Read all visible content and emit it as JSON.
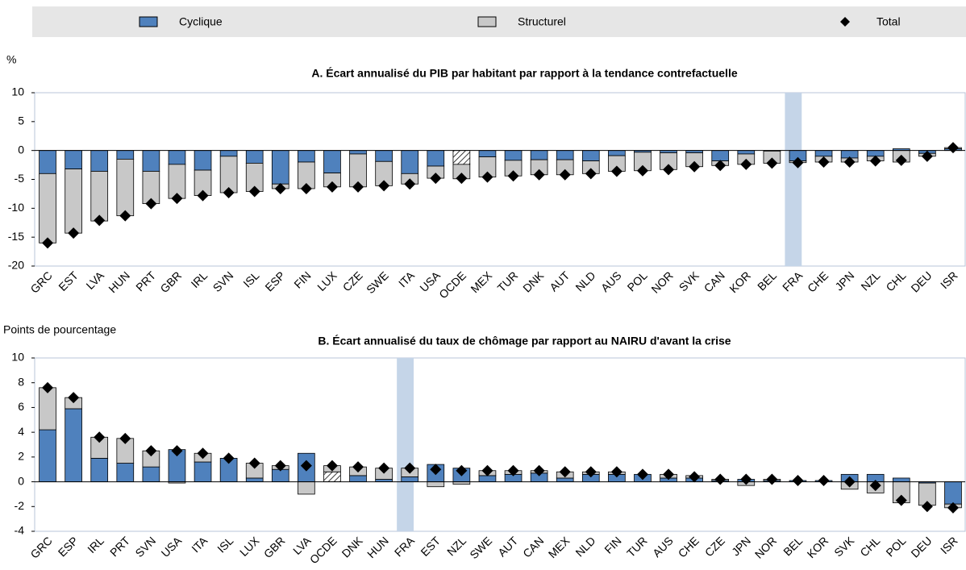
{
  "chart_data": [
    {
      "type": "stacked_bar",
      "title": "A. Écart annualisé du PIB par habitant par rapport à la tendance contrefactuelle",
      "y_label": "%",
      "categories": [
        "GRC",
        "EST",
        "LVA",
        "HUN",
        "PRT",
        "GBR",
        "IRL",
        "SVN",
        "ISL",
        "ESP",
        "FIN",
        "LUX",
        "CZE",
        "SWE",
        "ITA",
        "USA",
        "OCDE",
        "MEX",
        "TUR",
        "DNK",
        "AUT",
        "NLD",
        "AUS",
        "POL",
        "NOR",
        "SVK",
        "CAN",
        "KOR",
        "BEL",
        "FRA",
        "CHE",
        "JPN",
        "NZL",
        "CHL",
        "DEU",
        "ISR"
      ],
      "series": [
        {
          "name": "Cyclique",
          "color": "#4f81bd",
          "values": [
            -4.0,
            -3.2,
            -3.6,
            -1.5,
            -3.6,
            -2.4,
            -3.4,
            -1.0,
            -2.2,
            -5.8,
            -2.0,
            -3.9,
            -0.6,
            -1.9,
            -4.0,
            -2.7,
            -2.4,
            -1.1,
            -1.7,
            -1.6,
            -1.6,
            -1.8,
            -0.9,
            -0.3,
            -0.4,
            -0.4,
            -1.8,
            -0.6,
            -0.1,
            -1.8,
            -1.0,
            -1.3,
            -1.0,
            0.3,
            -0.5,
            0.3
          ]
        },
        {
          "name": "Structurel",
          "color": "#c8c8c8",
          "values": [
            -12.0,
            -11.1,
            -8.6,
            -9.8,
            -5.6,
            -5.9,
            -4.4,
            -6.3,
            -4.9,
            -0.8,
            -4.6,
            -2.4,
            -5.7,
            -4.2,
            -1.8,
            -2.1,
            -2.5,
            -3.5,
            -2.7,
            -2.6,
            -2.6,
            -2.2,
            -2.7,
            -3.2,
            -2.9,
            -2.4,
            -0.8,
            -1.8,
            -2.1,
            -0.3,
            -1.0,
            -0.7,
            -0.8,
            -2.0,
            -0.5,
            0.2
          ]
        },
        {
          "name": "Total",
          "color": "#000000",
          "marker": "diamond",
          "values": [
            -16.0,
            -14.3,
            -12.1,
            -11.3,
            -9.2,
            -8.3,
            -7.8,
            -7.3,
            -7.1,
            -6.6,
            -6.6,
            -6.3,
            -6.3,
            -6.1,
            -5.8,
            -4.8,
            -4.8,
            -4.6,
            -4.4,
            -4.2,
            -4.2,
            -4.0,
            -3.6,
            -3.5,
            -3.3,
            -2.8,
            -2.6,
            -2.4,
            -2.2,
            -2.1,
            -2.0,
            -2.0,
            -1.8,
            -1.7,
            -1.0,
            0.5
          ]
        }
      ],
      "highlight_category": "FRA",
      "hatched_category": "OCDE",
      "ylim": [
        -20,
        10
      ],
      "yticks": [
        -20,
        -15,
        -10,
        -5,
        0,
        5,
        10
      ]
    },
    {
      "type": "stacked_bar",
      "title": "B. Écart annualisé du taux de chômage par rapport au NAIRU d'avant la crise",
      "y_label": "Points de pourcentage",
      "categories": [
        "GRC",
        "ESP",
        "IRL",
        "PRT",
        "SVN",
        "USA",
        "ITA",
        "ISL",
        "LUX",
        "GBR",
        "LVA",
        "OCDE",
        "DNK",
        "HUN",
        "FRA",
        "EST",
        "NZL",
        "SWE",
        "AUT",
        "CAN",
        "MEX",
        "NLD",
        "FIN",
        "TUR",
        "AUS",
        "CHE",
        "CZE",
        "JPN",
        "NOR",
        "BEL",
        "KOR",
        "SVK",
        "CHL",
        "POL",
        "DEU",
        "ISR"
      ],
      "series": [
        {
          "name": "Cyclique",
          "color": "#4f81bd",
          "values": [
            4.2,
            5.9,
            1.9,
            1.5,
            1.2,
            2.6,
            1.6,
            1.9,
            0.3,
            1.0,
            2.3,
            0.8,
            0.5,
            0.2,
            0.4,
            1.4,
            1.1,
            0.5,
            0.6,
            0.7,
            0.3,
            0.6,
            0.6,
            0.6,
            0.3,
            0.3,
            0.1,
            0.2,
            0.1,
            0.1,
            0.1,
            0.6,
            0.6,
            0.3,
            -0.1,
            -1.8
          ]
        },
        {
          "name": "Structurel",
          "color": "#c8c8c8",
          "values": [
            3.4,
            0.9,
            1.7,
            2.0,
            1.3,
            -0.1,
            0.7,
            0.0,
            1.2,
            0.3,
            -1.0,
            0.5,
            0.7,
            0.9,
            0.7,
            -0.4,
            -0.2,
            0.4,
            0.3,
            0.2,
            0.5,
            0.2,
            0.2,
            0.0,
            0.3,
            0.2,
            0.1,
            -0.3,
            0.1,
            0.0,
            0.0,
            -0.6,
            -0.9,
            -1.7,
            -1.8,
            -0.3
          ]
        },
        {
          "name": "Total",
          "color": "#000000",
          "marker": "diamond",
          "values": [
            7.6,
            6.8,
            3.6,
            3.5,
            2.5,
            2.5,
            2.3,
            1.9,
            1.5,
            1.3,
            1.3,
            1.3,
            1.2,
            1.1,
            1.1,
            1.0,
            0.9,
            0.9,
            0.9,
            0.9,
            0.8,
            0.8,
            0.8,
            0.6,
            0.6,
            0.4,
            0.2,
            0.2,
            0.2,
            0.1,
            0.1,
            0.0,
            -0.3,
            -1.5,
            -2.0,
            -2.1
          ]
        }
      ],
      "highlight_category": "FRA",
      "hatched_category": "OCDE",
      "ylim": [
        -4,
        10
      ],
      "yticks": [
        -4,
        -2,
        0,
        2,
        4,
        6,
        8,
        10
      ]
    }
  ]
}
